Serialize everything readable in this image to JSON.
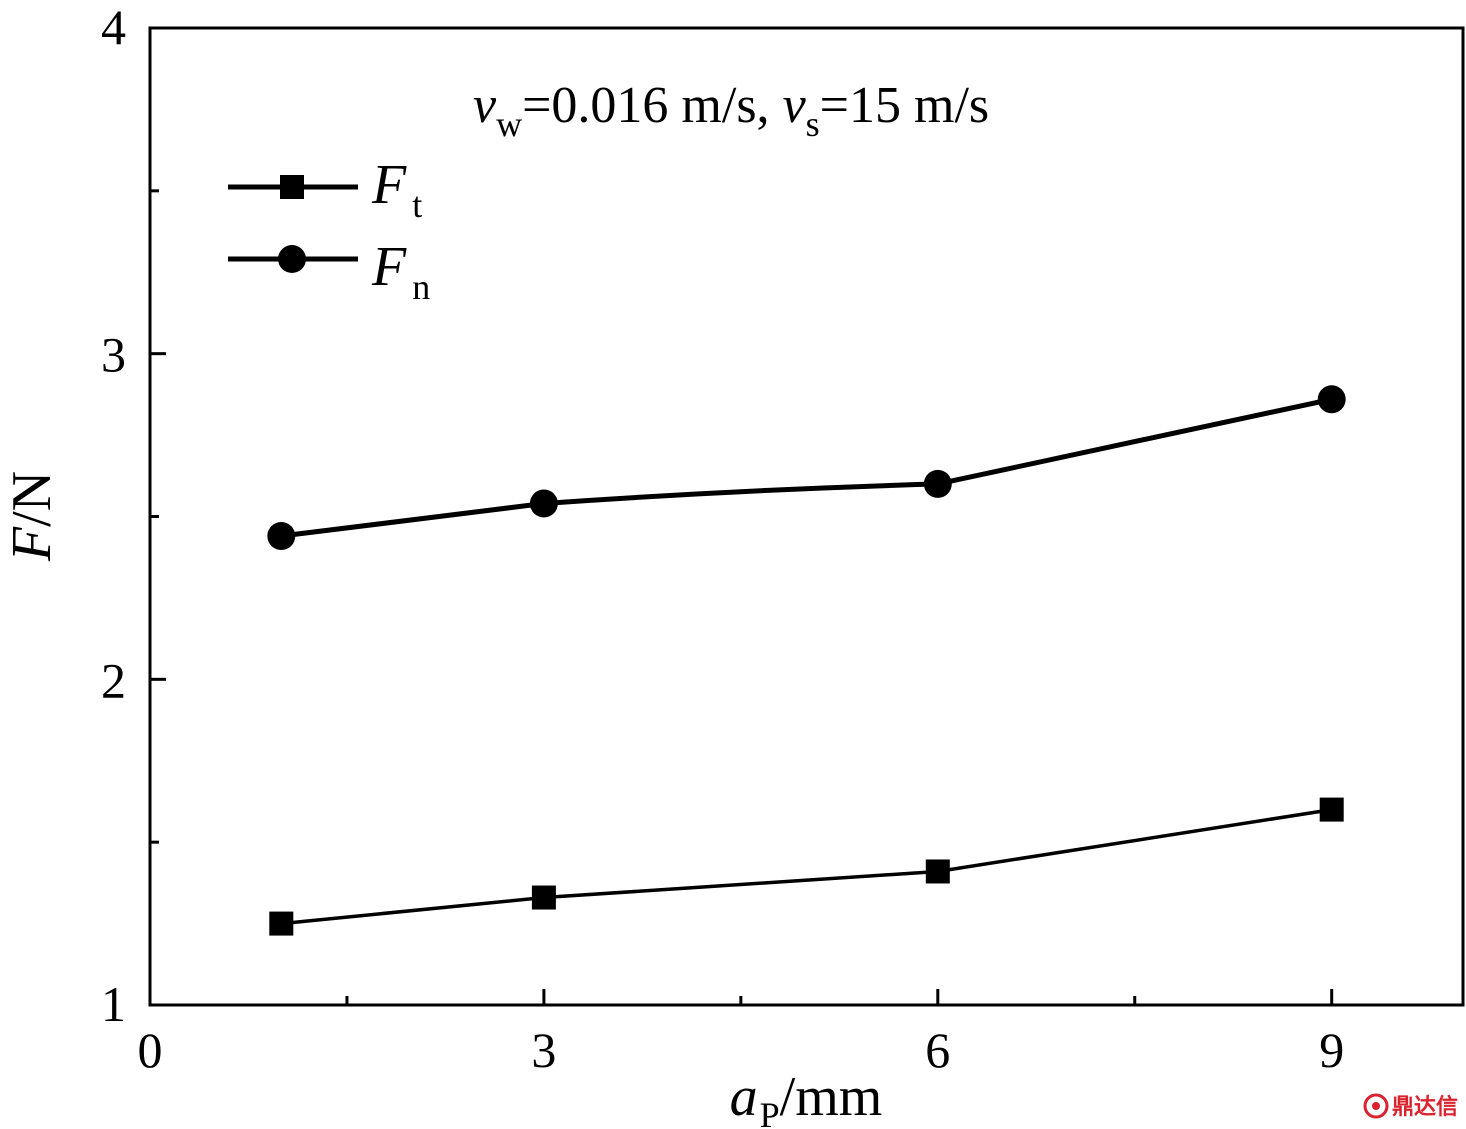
{
  "chart_data": {
    "type": "line",
    "title": "",
    "annotation": {
      "v1_symbol": "v",
      "v1_sub": "w",
      "v1_text": "=0.016 m/s, ",
      "v2_symbol": "v",
      "v2_sub": "s",
      "v2_text": "=15 m/s"
    },
    "xlabel": {
      "symbol": "a",
      "sub": "P",
      "unit": "/mm"
    },
    "ylabel": {
      "symbol": "F",
      "unit": "/N"
    },
    "xlim": [
      0,
      10
    ],
    "ylim": [
      1,
      4
    ],
    "x_ticks": [
      0,
      3,
      6,
      9
    ],
    "y_ticks": [
      1,
      2,
      3,
      4
    ],
    "x_minor_ticks": [
      1.5,
      4.5,
      7.5
    ],
    "y_minor_ticks": [
      1.5,
      2.5,
      3.5
    ],
    "legend_position": "top-left",
    "series": [
      {
        "name_symbol": "F",
        "name_sub": "t",
        "marker": "square",
        "x": [
          1,
          3,
          6,
          9
        ],
        "values": [
          1.25,
          1.33,
          1.41,
          1.6
        ]
      },
      {
        "name_symbol": "F",
        "name_sub": "n",
        "marker": "circle",
        "x": [
          1,
          3,
          6,
          9
        ],
        "values": [
          2.44,
          2.54,
          2.6,
          2.86
        ]
      }
    ],
    "colors": {
      "line": "#000000",
      "marker": "#000000"
    }
  },
  "watermark": {
    "text": "鼎达信",
    "color": "#d9232e"
  }
}
